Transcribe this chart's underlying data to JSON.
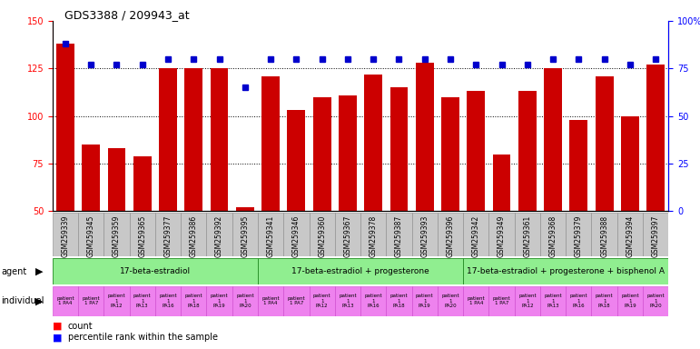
{
  "title": "GDS3388 / 209943_at",
  "gsm_ids": [
    "GSM259339",
    "GSM259345",
    "GSM259359",
    "GSM259365",
    "GSM259377",
    "GSM259386",
    "GSM259392",
    "GSM259395",
    "GSM259341",
    "GSM259346",
    "GSM259360",
    "GSM259367",
    "GSM259378",
    "GSM259387",
    "GSM259393",
    "GSM259396",
    "GSM259342",
    "GSM259349",
    "GSM259361",
    "GSM259368",
    "GSM259379",
    "GSM259388",
    "GSM259394",
    "GSM259397"
  ],
  "counts": [
    138,
    85,
    83,
    79,
    125,
    125,
    125,
    52,
    121,
    103,
    110,
    111,
    122,
    115,
    128,
    110,
    113,
    80,
    113,
    125,
    98,
    121,
    100,
    127
  ],
  "percentiles": [
    88,
    77,
    77,
    77,
    80,
    80,
    80,
    65,
    80,
    80,
    80,
    80,
    80,
    80,
    80,
    80,
    77,
    77,
    77,
    80,
    80,
    80,
    77,
    80
  ],
  "bar_color": "#CC0000",
  "dot_color": "#0000CC",
  "ylim_left": [
    50,
    150
  ],
  "ylim_right": [
    0,
    100
  ],
  "yticks_left": [
    50,
    75,
    100,
    125,
    150
  ],
  "yticks_right": [
    0,
    25,
    50,
    75,
    100
  ],
  "agent_groups": [
    {
      "label": "17-beta-estradiol",
      "start": 0,
      "end": 8
    },
    {
      "label": "17-beta-estradiol + progesterone",
      "start": 8,
      "end": 16
    },
    {
      "label": "17-beta-estradiol + progesterone + bisphenol A",
      "start": 16,
      "end": 24
    }
  ],
  "agent_color_light": "#90EE90",
  "agent_color_mid": "#50C850",
  "individual_color": "#EE82EE",
  "indiv_labels": [
    "patient\n1 PA4",
    "patient\n1 PA7",
    "patient\n1\nPA12",
    "patient\n1\nPA13",
    "patient\n1\nPA16",
    "patient\n1\nPA18",
    "patient\n1\nPA19",
    "patient\n1\nPA20"
  ],
  "gsm_bg_color": "#C8C8C8",
  "separator_color": "#888888"
}
